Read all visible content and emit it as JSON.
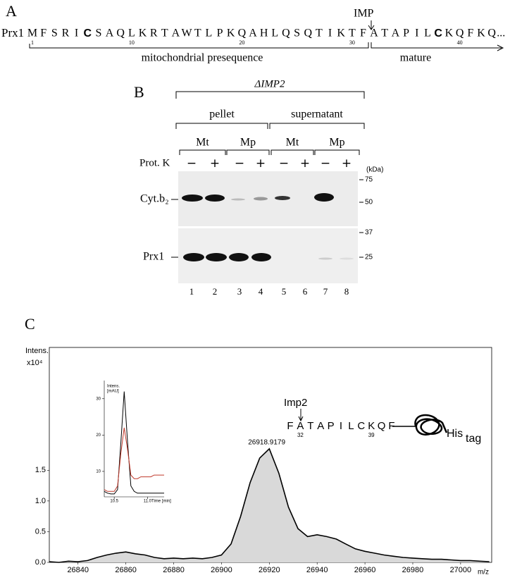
{
  "panel_a": {
    "label": "A",
    "protein": "Prx1",
    "cleavage_enzyme": "IMP",
    "presequence": [
      "M",
      "F",
      "S",
      "R",
      "I",
      "C",
      "S",
      "A",
      "Q",
      "L",
      "K",
      "R",
      "T",
      "A",
      "W",
      "T",
      "L",
      "P",
      "K",
      "Q",
      "A",
      "H",
      "L",
      "Q",
      "S",
      "Q",
      "T",
      "I",
      "K",
      "T",
      "F"
    ],
    "mature": [
      "A",
      "T",
      "A",
      "P",
      "I",
      "L",
      "C",
      "K",
      "Q",
      "F",
      "K",
      "Q"
    ],
    "ellipsis": "...",
    "bold_positions": [
      6,
      38
    ],
    "position_marks": [
      1,
      10,
      20,
      30,
      40
    ],
    "presequence_label": "mitochondrial presequence",
    "mature_label": "mature"
  },
  "panel_b": {
    "label": "B",
    "strain": "ΔIMP2",
    "fractions": [
      "pellet",
      "supernatant"
    ],
    "samples": [
      "Mt",
      "Mp",
      "Mt",
      "Mp"
    ],
    "treatment_label": "Prot. K",
    "treatment": [
      "−",
      "+",
      "−",
      "+",
      "−",
      "+",
      "−",
      "+"
    ],
    "marker_unit": "(kDa)",
    "markers": [
      75,
      50,
      37,
      25
    ],
    "blots": [
      "Cyt.b₂",
      "Prx1"
    ],
    "lanes": [
      1,
      2,
      3,
      4,
      5,
      6,
      7,
      8
    ]
  },
  "panel_c": {
    "label": "C",
    "enzyme": "Imp2",
    "peptide": [
      "F",
      "A",
      "T",
      "A",
      "P",
      "I",
      "L",
      "C",
      "K",
      "Q",
      "F"
    ],
    "position_marks": [
      32,
      39
    ],
    "tag": "His",
    "tag_sub": "tag"
  },
  "chart_data": [
    {
      "type": "line",
      "ylabel": "Intens.",
      "y_multiplier": "x10⁴",
      "xlabel": "m/z",
      "annotation": 26918.9179,
      "x": [
        26828,
        26832,
        26836,
        26840,
        26844,
        26848,
        26852,
        26856,
        26860,
        26864,
        26868,
        26872,
        26876,
        26880,
        26884,
        26888,
        26892,
        26896,
        26900,
        26904,
        26908,
        26912,
        26916,
        26920,
        26924,
        26928,
        26932,
        26936,
        26940,
        26944,
        26948,
        26952,
        26956,
        26960,
        26964,
        26968,
        26972,
        26976,
        26980,
        26984,
        26988,
        26992,
        26996,
        27000,
        27004,
        27008,
        27012
      ],
      "series": [
        {
          "color": "#000000",
          "fill": "#d9d9d9",
          "values": [
            0.01,
            0.0,
            0.02,
            0.01,
            0.03,
            0.08,
            0.12,
            0.15,
            0.17,
            0.14,
            0.12,
            0.08,
            0.06,
            0.07,
            0.06,
            0.07,
            0.06,
            0.08,
            0.12,
            0.3,
            0.75,
            1.3,
            1.7,
            1.85,
            1.45,
            0.9,
            0.55,
            0.42,
            0.45,
            0.42,
            0.38,
            0.3,
            0.22,
            0.18,
            0.15,
            0.12,
            0.1,
            0.08,
            0.07,
            0.06,
            0.05,
            0.05,
            0.04,
            0.03,
            0.03,
            0.02,
            0.01
          ]
        }
      ],
      "xlim": [
        26828,
        27013
      ],
      "ylim": [
        0,
        3.5
      ],
      "xticks": [
        26840,
        26860,
        26880,
        26900,
        26920,
        26940,
        26960,
        26980,
        27000
      ],
      "yticks": [
        {
          "value": 0,
          "label": "0.0"
        },
        0.5,
        {
          "value": 1,
          "label": "1.0"
        },
        1.5
      ]
    },
    {
      "type": "line",
      "ylabel": "Intens.",
      "yunit": "[mAU]",
      "xlabel": "Time [min]",
      "x": [
        10.35,
        10.4,
        10.45,
        10.5,
        10.55,
        10.6,
        10.65,
        10.7,
        10.75,
        10.8,
        10.85,
        10.9,
        10.95,
        11.0,
        11.05,
        11.1,
        11.15,
        11.2,
        11.25
      ],
      "series": [
        {
          "color": "#000000",
          "values": [
            4.5,
            4,
            3.8,
            3.8,
            5,
            18,
            32,
            18,
            6,
            4.5,
            4,
            4,
            4,
            4,
            4,
            4,
            4,
            4,
            4
          ]
        },
        {
          "color": "#c0392b",
          "values": [
            5,
            4.5,
            4.5,
            4.5,
            6,
            15,
            22,
            16,
            9,
            8,
            8,
            8.5,
            8.5,
            8.5,
            8.5,
            9,
            9,
            9,
            9
          ]
        }
      ],
      "xlim": [
        10.35,
        11.25
      ],
      "ylim": [
        3,
        35
      ],
      "xticks": [
        10.5,
        {
          "value": 11,
          "label": "11.0"
        }
      ],
      "yticks": [
        10,
        20,
        30
      ]
    }
  ]
}
